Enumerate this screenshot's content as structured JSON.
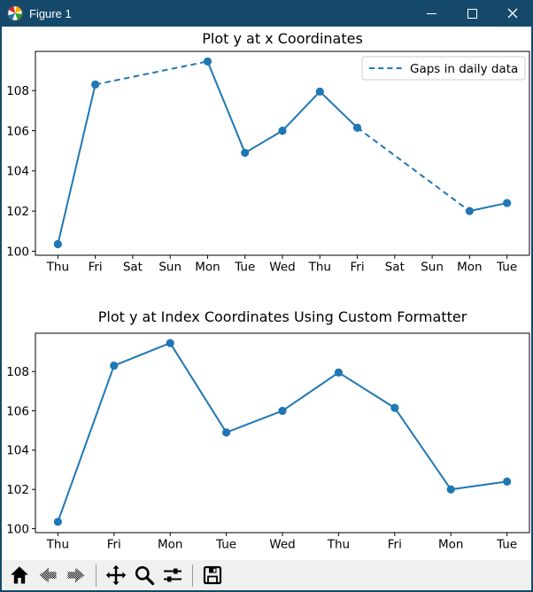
{
  "window": {
    "title": "Figure 1",
    "controls": [
      {
        "name": "minimize"
      },
      {
        "name": "maximize"
      },
      {
        "name": "close"
      }
    ]
  },
  "colors": {
    "titlebar": "#15496b",
    "line": "#1f77b4",
    "toolbar_bg": "#f0f0f0",
    "axes_fg": "#000000",
    "legend_border": "#cccccc"
  },
  "chart_data": [
    {
      "type": "line",
      "title": "Plot y at x Coordinates",
      "x_tick_labels": [
        "Thu",
        "Fri",
        "Sat",
        "Sun",
        "Mon",
        "Tue",
        "Wed",
        "Thu",
        "Fri",
        "Sat",
        "Sun",
        "Mon",
        "Tue"
      ],
      "y_ticks": [
        100,
        102,
        104,
        106,
        108
      ],
      "xlim": [
        -0.6,
        12.6
      ],
      "ylim": [
        99.8,
        109.95
      ],
      "grid": false,
      "legend": {
        "label": "Gaps in daily data",
        "position": "upper right",
        "line_style": "dashed"
      },
      "series": [
        {
          "name": "Gaps in daily data",
          "color": "#1f77b4",
          "marker": "o",
          "x": [
            0,
            1,
            4,
            5,
            6,
            7,
            8,
            11,
            12
          ],
          "values": [
            100.35,
            108.3,
            109.45,
            104.9,
            106.0,
            107.95,
            106.15,
            102.0,
            102.4
          ],
          "dashed_segments": [
            [
              1,
              2
            ],
            [
              6,
              7
            ]
          ]
        }
      ]
    },
    {
      "type": "line",
      "title": "Plot y at Index Coordinates Using Custom Formatter",
      "x_tick_labels": [
        "Thu",
        "Fri",
        "Mon",
        "Tue",
        "Wed",
        "Thu",
        "Fri",
        "Mon",
        "Tue"
      ],
      "y_ticks": [
        100,
        102,
        104,
        106,
        108
      ],
      "xlim": [
        -0.4,
        8.4
      ],
      "ylim": [
        99.8,
        109.95
      ],
      "grid": false,
      "legend": null,
      "series": [
        {
          "name": "y",
          "color": "#1f77b4",
          "marker": "o",
          "x": [
            0,
            1,
            2,
            3,
            4,
            5,
            6,
            7,
            8
          ],
          "values": [
            100.35,
            108.3,
            109.45,
            104.9,
            106.0,
            107.95,
            106.15,
            102.0,
            102.4
          ],
          "dashed_segments": []
        }
      ]
    }
  ],
  "toolbar": {
    "buttons": [
      {
        "name": "home",
        "enabled": true
      },
      {
        "name": "back",
        "enabled": false
      },
      {
        "name": "forward",
        "enabled": false
      },
      {
        "name": "pan",
        "enabled": true
      },
      {
        "name": "zoom",
        "enabled": true
      },
      {
        "name": "configure-subplots",
        "enabled": true
      },
      {
        "name": "save",
        "enabled": true
      }
    ]
  }
}
